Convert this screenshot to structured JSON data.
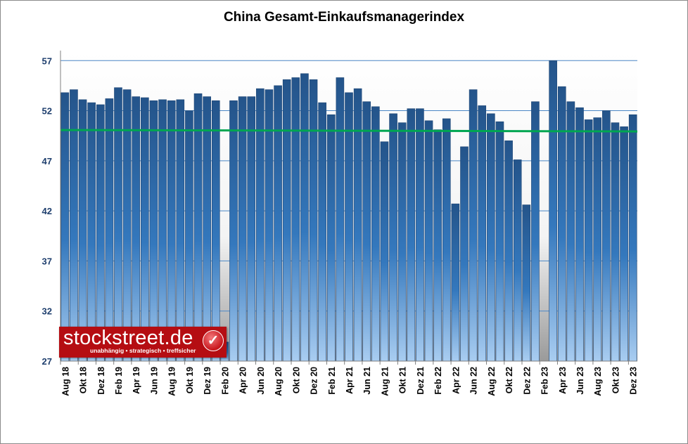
{
  "chart_data": {
    "type": "bar",
    "title": "China Gesamt-Einkaufsmanagerindex",
    "xlabel": "",
    "ylabel": "",
    "ylim": [
      27,
      58
    ],
    "yticks": [
      27,
      32,
      37,
      42,
      47,
      52,
      57
    ],
    "grid": true,
    "reference_line": {
      "value": 50,
      "color": "#00a651"
    },
    "x_tick_labels": [
      "Aug 18",
      "Okt 18",
      "Dez 18",
      "Feb 19",
      "Apr 19",
      "Jun 19",
      "Aug 19",
      "Okt 19",
      "Dez 19",
      "Feb 20",
      "Apr 20",
      "Jun 20",
      "Aug 20",
      "Okt 20",
      "Dez 20",
      "Feb 21",
      "Apr 21",
      "Jun 21",
      "Aug 21",
      "Okt 21",
      "Dez 21",
      "Feb 22",
      "Apr 22",
      "Jun 22",
      "Aug 22",
      "Okt 22",
      "Dez 22",
      "Feb 23",
      "Apr 23",
      "Jun 23",
      "Aug 23",
      "Okt 23",
      "Dez 23"
    ],
    "values": [
      53.8,
      54.1,
      53.1,
      52.8,
      52.6,
      53.2,
      54.3,
      54.1,
      53.4,
      53.3,
      53.0,
      53.1,
      53.0,
      53.1,
      52.0,
      53.7,
      53.4,
      53.0,
      28.9,
      53.0,
      53.4,
      53.4,
      54.2,
      54.1,
      54.5,
      55.1,
      55.3,
      55.7,
      55.1,
      52.8,
      51.6,
      55.3,
      53.8,
      54.2,
      52.9,
      52.4,
      48.9,
      51.7,
      50.8,
      52.2,
      52.2,
      51.0,
      50.1,
      51.2,
      42.7,
      48.4,
      54.1,
      52.5,
      51.7,
      50.9,
      49.0,
      47.1,
      42.6,
      52.9,
      null,
      57.0,
      54.4,
      52.9,
      52.3,
      51.1,
      51.3,
      52.0,
      50.8,
      50.4,
      51.6
    ],
    "colors": {
      "bar_top": "#24548a",
      "bar_bottom": "#a9cdf1",
      "grid": "#4a86c5",
      "tick_label": "#1f3f6e"
    }
  },
  "logo": {
    "name": "stockstreet.de",
    "tagline": "unabhängig • strategisch • treffsicher"
  }
}
